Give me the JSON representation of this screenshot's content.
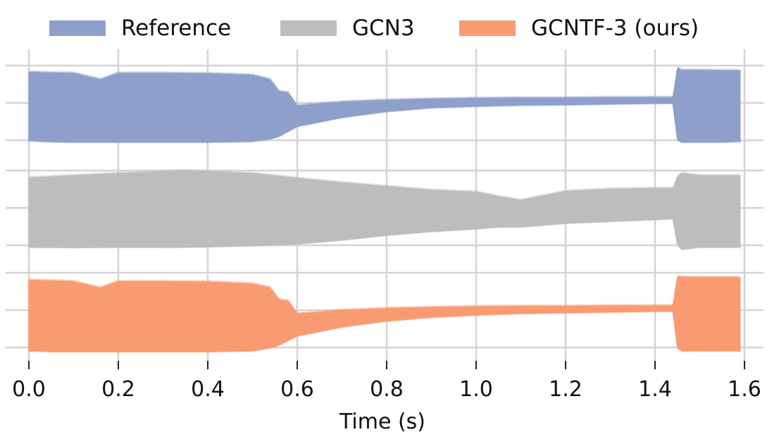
{
  "chart_data": {
    "type": "area",
    "xlabel": "Time (s)",
    "ylabel": "",
    "xlim": [
      0.0,
      1.6
    ],
    "xticks": [
      0.0,
      0.2,
      0.4,
      0.6,
      0.8,
      1.0,
      1.2,
      1.4,
      1.6
    ],
    "xtick_labels": [
      "0.0",
      "0.2",
      "0.4",
      "0.6",
      "0.8",
      "1.0",
      "1.2",
      "1.4",
      "1.6"
    ],
    "grid": true,
    "legend_position": "top",
    "series": [
      {
        "name": "Reference",
        "color": "#8E9FCB",
        "x": [
          0.0,
          0.05,
          0.1,
          0.16,
          0.2,
          0.3,
          0.4,
          0.5,
          0.54,
          0.56,
          0.58,
          0.6,
          0.65,
          0.7,
          0.8,
          0.9,
          1.0,
          1.1,
          1.2,
          1.3,
          1.4,
          1.44,
          1.45,
          1.46,
          1.5,
          1.55,
          1.59
        ],
        "upper": [
          0.8,
          0.78,
          0.77,
          0.6,
          0.77,
          0.77,
          0.76,
          0.72,
          0.6,
          0.28,
          0.25,
          -0.1,
          -0.05,
          0.0,
          0.05,
          0.08,
          0.1,
          0.11,
          0.11,
          0.12,
          0.12,
          0.12,
          0.92,
          0.85,
          0.85,
          0.84,
          0.84
        ],
        "lower": [
          -1.0,
          -1.03,
          -1.04,
          -1.04,
          -1.04,
          -1.04,
          -1.04,
          -1.02,
          -0.95,
          -0.88,
          -0.75,
          -0.62,
          -0.5,
          -0.38,
          -0.22,
          -0.12,
          -0.08,
          -0.05,
          -0.04,
          -0.02,
          0.0,
          0.0,
          -0.98,
          -1.04,
          -1.04,
          -1.04,
          -1.02
        ]
      },
      {
        "name": "GCN3",
        "color": "#BDBDBD",
        "x": [
          0.0,
          0.1,
          0.2,
          0.3,
          0.35,
          0.4,
          0.5,
          0.6,
          0.7,
          0.8,
          0.9,
          1.0,
          1.05,
          1.1,
          1.15,
          1.2,
          1.3,
          1.4,
          1.44,
          1.45,
          1.46,
          1.5,
          1.55,
          1.59
        ],
        "upper": [
          0.78,
          0.84,
          0.9,
          0.95,
          0.97,
          0.95,
          0.9,
          0.77,
          0.65,
          0.55,
          0.45,
          0.4,
          0.28,
          0.18,
          0.3,
          0.42,
          0.48,
          0.5,
          0.5,
          0.82,
          0.9,
          0.84,
          0.84,
          0.84
        ],
        "lower": [
          -1.04,
          -1.05,
          -1.04,
          -1.04,
          -1.04,
          -1.03,
          -1.0,
          -0.95,
          -0.85,
          -0.72,
          -0.62,
          -0.55,
          -0.5,
          -0.5,
          -0.45,
          -0.4,
          -0.35,
          -0.3,
          -0.28,
          -0.98,
          -1.1,
          -1.04,
          -1.04,
          -1.04
        ]
      },
      {
        "name": "GCNTF-3 (ours)",
        "color": "#F99B72",
        "x": [
          0.0,
          0.05,
          0.1,
          0.16,
          0.2,
          0.3,
          0.4,
          0.5,
          0.54,
          0.56,
          0.58,
          0.6,
          0.65,
          0.7,
          0.8,
          0.9,
          1.0,
          1.1,
          1.2,
          1.3,
          1.4,
          1.44,
          1.45,
          1.46,
          1.5,
          1.55,
          1.59
        ],
        "upper": [
          0.78,
          0.76,
          0.74,
          0.57,
          0.74,
          0.74,
          0.73,
          0.68,
          0.57,
          0.25,
          0.22,
          -0.12,
          -0.08,
          -0.03,
          0.02,
          0.05,
          0.07,
          0.08,
          0.08,
          0.09,
          0.09,
          0.09,
          0.88,
          0.86,
          0.85,
          0.85,
          0.85
        ],
        "lower": [
          -1.08,
          -1.1,
          -1.1,
          -1.1,
          -1.1,
          -1.1,
          -1.1,
          -1.08,
          -1.0,
          -0.92,
          -0.8,
          -0.68,
          -0.56,
          -0.44,
          -0.28,
          -0.18,
          -0.12,
          -0.08,
          -0.06,
          -0.04,
          -0.02,
          -0.02,
          -1.0,
          -1.08,
          -1.08,
          -1.08,
          -1.08
        ]
      }
    ]
  }
}
